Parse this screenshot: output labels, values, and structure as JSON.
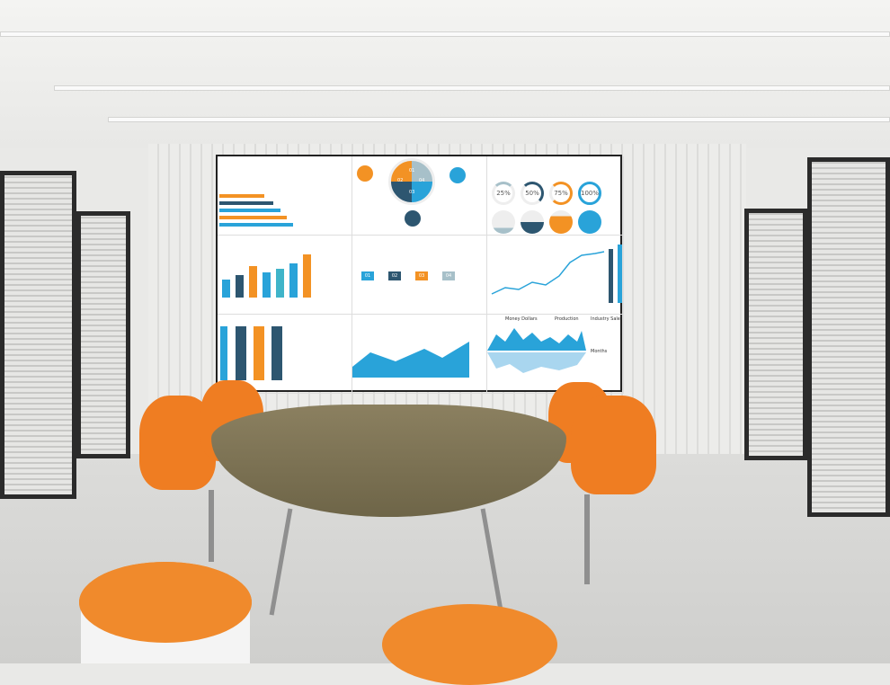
{
  "screen": {
    "percent_labels": [
      "25%",
      "50%",
      "75%",
      "100%"
    ],
    "pie_labels": [
      "01",
      "02",
      "03",
      "04"
    ],
    "tag_labels": [
      "01",
      "02",
      "03",
      "04"
    ],
    "wave_chart": {
      "ylabel": "Money Dollars",
      "legend": [
        "Production",
        "Industry Sale"
      ],
      "xlabel": "Months"
    }
  },
  "colors": {
    "blue": "#29a3d9",
    "orange": "#f39224",
    "navy": "#2d5670",
    "grey": "#a7c0c9",
    "chair": "#ef7d22"
  }
}
